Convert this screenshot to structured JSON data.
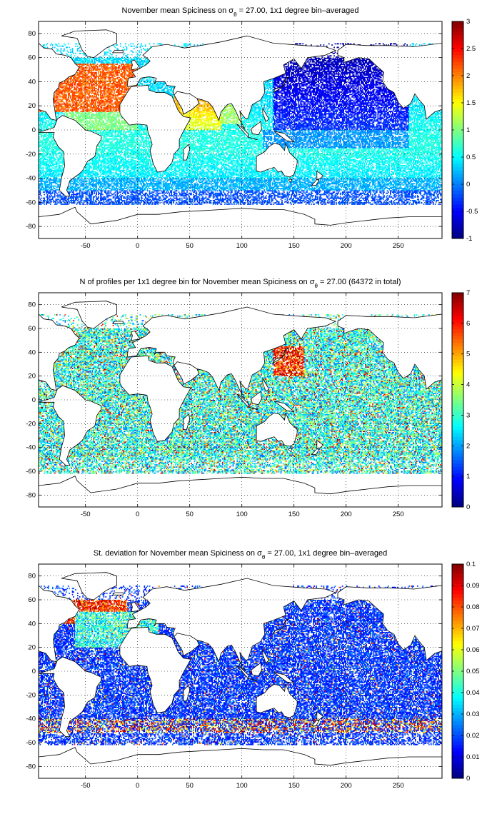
{
  "maps": [
    {
      "title_pre": "November mean Spiciness on ",
      "title_sym": "σ",
      "title_sub": "θ",
      "title_post": " = 27.00, 1x1 degree bin–averaged",
      "colorbar": {
        "min": -1,
        "max": 3,
        "ticks": [
          "3",
          "2.5",
          "2",
          "1.5",
          "1",
          "0.5",
          "0",
          "-0.5",
          "-1"
        ],
        "colormap": "jet"
      },
      "field": "spiciness"
    },
    {
      "title_pre": "N of profiles per 1x1 degree bin for November mean Spiciness on ",
      "title_sym": "σ",
      "title_sub": "θ",
      "title_post": " = 27.00 (64372 in total)",
      "colorbar": {
        "min": 0,
        "max": 7,
        "ticks": [
          "7",
          "6",
          "5",
          "4",
          "3",
          "2",
          "1",
          "0"
        ],
        "colormap": "jet"
      },
      "field": "count"
    },
    {
      "title_pre": "St. deviation for November mean Spiciness on ",
      "title_sym": "σ",
      "title_sub": "θ",
      "title_post": " = 27.00, 1x1 degree bin–averaged",
      "colorbar": {
        "min": 0,
        "max": 0.1,
        "ticks": [
          "0.1",
          "0.09",
          "0.08",
          "0.07",
          "0.06",
          "0.05",
          "0.04",
          "0.03",
          "0.02",
          "0.01",
          "0"
        ],
        "colormap": "jet"
      },
      "field": "stdev"
    }
  ],
  "axes": {
    "xlim": [
      -95,
      292
    ],
    "ylim": [
      -90,
      90
    ],
    "xticks": [
      -50,
      0,
      50,
      100,
      150,
      200,
      250
    ],
    "yticks": [
      80,
      60,
      40,
      20,
      0,
      -20,
      -40,
      -60,
      -80
    ],
    "grid": true,
    "grid_style": "dotted"
  },
  "colors": {
    "land": "#ffffff",
    "coast": "#000000",
    "missing": "#ffffff"
  }
}
